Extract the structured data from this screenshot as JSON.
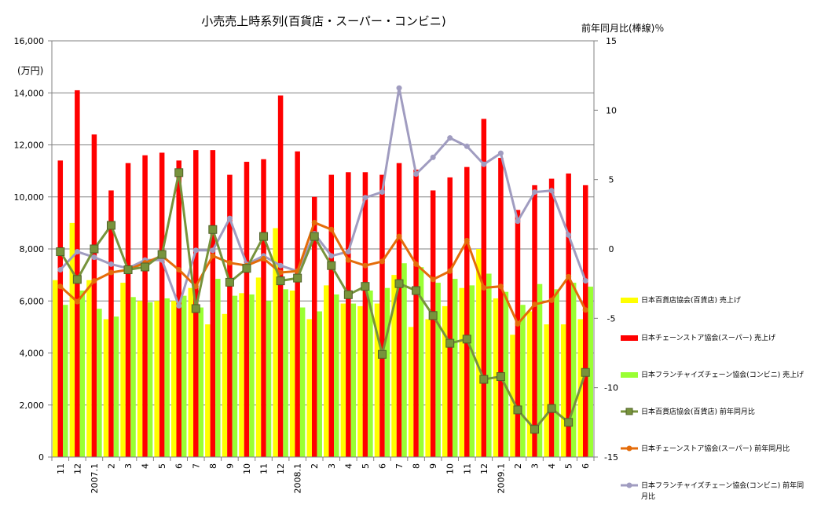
{
  "chart_data": {
    "type": "bar+line",
    "title": "小売売上時系列(百貨店・スーパー・コンビニ)",
    "ylabel_left": "(万円)",
    "ylabel_right": "前年同月比(棒線)％",
    "ylim_left": [
      0,
      16000
    ],
    "yticks_left": [
      0,
      2000,
      4000,
      6000,
      8000,
      10000,
      12000,
      14000,
      16000
    ],
    "ytick_labels_left": [
      "0",
      "2,000",
      "4,000",
      "6,000",
      "8,000",
      "10,000",
      "12,000",
      "14,000",
      "16,000"
    ],
    "ylim_right": [
      -15,
      15
    ],
    "yticks_right": [
      -15,
      -10,
      -5,
      0,
      5,
      10,
      15
    ],
    "ytick_labels_right": [
      "-15",
      "-10",
      "-5",
      "0",
      "5",
      "10",
      "15"
    ],
    "grid": "horizontal",
    "legend_position": "right",
    "categories": [
      "11",
      "12",
      "2007.1",
      "2",
      "3",
      "4",
      "5",
      "6",
      "7",
      "8",
      "9",
      "10",
      "11",
      "12",
      "2008.1",
      "2",
      "3",
      "4",
      "5",
      "6",
      "7",
      "8",
      "9",
      "10",
      "11",
      "12",
      "2009.1",
      "2",
      "3",
      "4",
      "5",
      "6"
    ],
    "bar_series": [
      {
        "name": "日本百貨店協会(百貨店) 売上げ",
        "color": "#FFFF00",
        "values": [
          6800,
          9000,
          6800,
          5300,
          6700,
          6000,
          6000,
          6000,
          6500,
          5100,
          5500,
          6300,
          6900,
          8800,
          6400,
          5300,
          6600,
          5900,
          5800,
          5900,
          7000,
          5000,
          5300,
          5800,
          6500,
          8000,
          6100,
          4700,
          5600,
          5100,
          5100,
          5300
        ]
      },
      {
        "name": "日本チェーンストア協会(スーパー) 売上げ",
        "color": "#FF0000",
        "values": [
          11400,
          14100,
          12400,
          10250,
          11300,
          11600,
          11700,
          11400,
          11800,
          11800,
          10850,
          11350,
          11450,
          13900,
          11750,
          10000,
          10850,
          10950,
          10950,
          10850,
          11300,
          11050,
          10250,
          10750,
          11150,
          13000,
          11500,
          9500,
          10450,
          10700,
          10900,
          10450
        ]
      },
      {
        "name": "日本フランチャイズチェーン協会(コンビニ) 売上げ",
        "color": "#99FF33",
        "values": [
          5850,
          6400,
          5700,
          5400,
          6150,
          5950,
          6100,
          6200,
          5750,
          6850,
          6200,
          6250,
          6000,
          6450,
          5750,
          5600,
          6250,
          5900,
          6400,
          6500,
          7450,
          7300,
          6700,
          6850,
          6600,
          7050,
          6350,
          5850,
          6650,
          6450,
          6700,
          6550
        ]
      }
    ],
    "line_series": [
      {
        "name": "日本百貨店協会(百貨店) 前年同月比",
        "color": "#77933C",
        "values": [
          -0.2,
          -2.2,
          0.0,
          1.7,
          -1.5,
          -1.3,
          -0.4,
          5.5,
          -4.3,
          1.4,
          -2.4,
          -1.4,
          0.9,
          -2.3,
          -2.1,
          0.9,
          -1.2,
          -3.3,
          -2.7,
          -7.6,
          -2.5,
          -3.0,
          -4.8,
          -6.8,
          -6.5,
          -9.4,
          -9.2,
          -11.6,
          -13.0,
          -11.5,
          -12.5,
          -8.9
        ]
      },
      {
        "name": "日本チェーンストア協会(スーパー) 前年同月比",
        "color": "#E46C0A",
        "values": [
          -2.7,
          -3.8,
          -2.3,
          -1.7,
          -1.5,
          -1.0,
          -0.5,
          -1.5,
          -2.7,
          -0.5,
          -1.0,
          -1.2,
          -0.7,
          -1.7,
          -1.6,
          1.9,
          1.4,
          -0.8,
          -1.2,
          -0.9,
          0.9,
          -1.1,
          -2.2,
          -1.6,
          0.6,
          -2.8,
          -2.7,
          -5.4,
          -4.0,
          -3.7,
          -2.0,
          -4.4
        ]
      },
      {
        "name": "日本フランチャイズチェーン協会(コンビニ) 前年同月比",
        "color": "#A09CC0",
        "values": [
          -1.5,
          -0.2,
          -0.6,
          -1.1,
          -1.4,
          -0.8,
          -0.8,
          -4.1,
          -0.1,
          -0.1,
          2.2,
          -1.1,
          -0.5,
          -1.2,
          -1.6,
          1.1,
          -0.5,
          -0.2,
          3.7,
          4.1,
          11.6,
          5.4,
          6.6,
          8.0,
          7.4,
          6.1,
          6.9,
          2.0,
          4.1,
          4.2,
          1.0,
          -2.3
        ]
      }
    ]
  }
}
